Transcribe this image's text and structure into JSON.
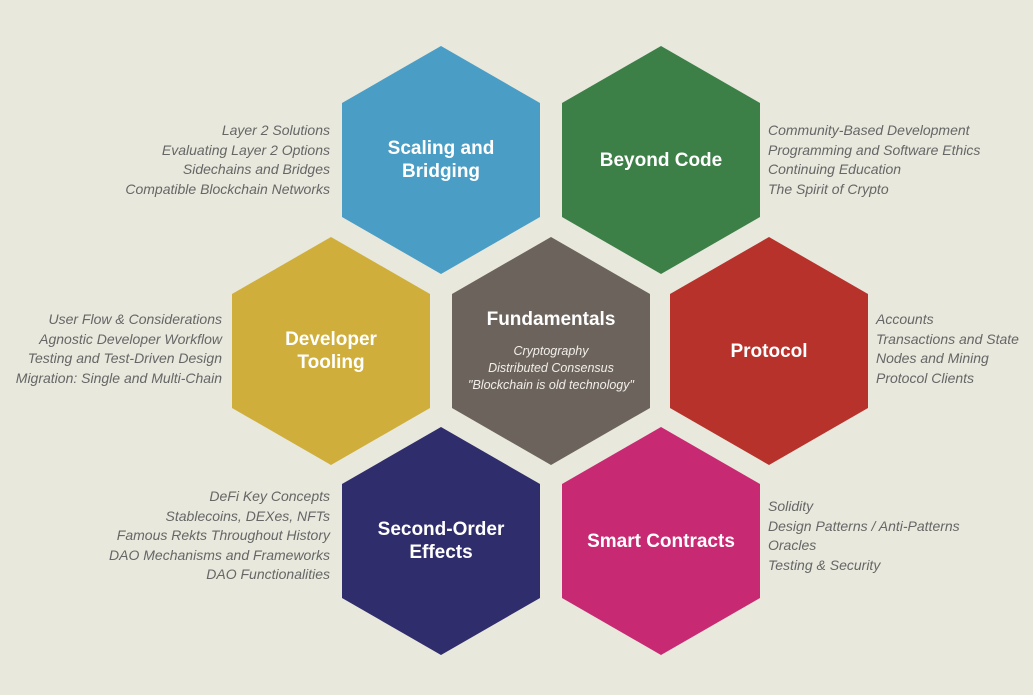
{
  "hexagons": [
    {
      "id": "scaling",
      "title": "Scaling and\nBridging",
      "color": "#4a9dc5",
      "items": []
    },
    {
      "id": "beyond",
      "title": "Beyond Code",
      "color": "#3c7f47",
      "items": []
    },
    {
      "id": "tooling",
      "title": "Developer\nTooling",
      "color": "#cfae3b",
      "items": []
    },
    {
      "id": "fundamentals",
      "title": "Fundamentals",
      "color": "#6c635c",
      "items": [
        "Cryptography",
        "Distributed Consensus",
        "\"Blockchain is old technology\""
      ]
    },
    {
      "id": "protocol",
      "title": "Protocol",
      "color": "#b7322b",
      "items": []
    },
    {
      "id": "effects",
      "title": "Second-Order\nEffects",
      "color": "#2f2d6b",
      "items": []
    },
    {
      "id": "contracts",
      "title": "Smart Contracts",
      "color": "#c72a72",
      "items": []
    }
  ],
  "topic_lists": [
    {
      "for": "scaling",
      "side": "left",
      "items": [
        "Layer 2 Solutions",
        "Evaluating Layer 2 Options",
        "Sidechains and Bridges",
        "Compatible Blockchain Networks"
      ]
    },
    {
      "for": "beyond",
      "side": "right",
      "items": [
        "Community-Based Development",
        "Programming and Software Ethics",
        "Continuing Education",
        "The Spirit of Crypto"
      ]
    },
    {
      "for": "tooling",
      "side": "left",
      "items": [
        "User Flow & Considerations",
        "Agnostic Developer Workflow",
        "Testing and Test-Driven Design",
        "Migration: Single and Multi-Chain"
      ]
    },
    {
      "for": "protocol",
      "side": "right",
      "items": [
        "Accounts",
        "Transactions and State",
        "Nodes and Mining",
        "Protocol Clients"
      ]
    },
    {
      "for": "effects",
      "side": "left",
      "items": [
        "DeFi Key Concepts",
        "Stablecoins, DEXes, NFTs",
        "Famous Rekts Throughout History",
        "DAO Mechanisms and Frameworks",
        "DAO Functionalities"
      ]
    },
    {
      "for": "contracts",
      "side": "right",
      "items": [
        "Solidity",
        "Design Patterns / Anti-Patterns",
        "Oracles",
        "Testing & Security"
      ]
    }
  ]
}
